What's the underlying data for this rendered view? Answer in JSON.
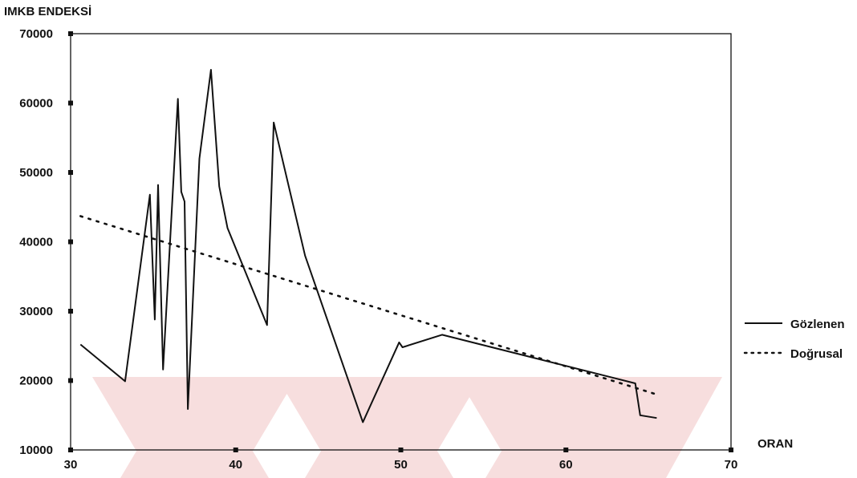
{
  "chart_data": {
    "type": "line",
    "ylabel": "IMKB ENDEKSİ",
    "xlabel": "ORAN",
    "xlim": [
      30,
      70
    ],
    "ylim": [
      10000,
      70000
    ],
    "xticks": [
      30,
      40,
      50,
      60,
      70
    ],
    "yticks": [
      10000,
      20000,
      30000,
      40000,
      50000,
      60000,
      70000
    ],
    "xtick_labels": [
      "30",
      "40",
      "50",
      "60",
      "70"
    ],
    "ytick_labels": [
      "10000",
      "20000",
      "30000",
      "40000",
      "50000",
      "60000",
      "70000"
    ],
    "grid": false,
    "legend_position": "right",
    "colors": {
      "series_line": "#111111",
      "axis": "#111111",
      "watermark": "#f7dede"
    },
    "series": [
      {
        "name": "Gözlenen",
        "style": "solid",
        "x": [
          30.6,
          33.3,
          34.8,
          35.1,
          35.3,
          35.6,
          36.5,
          36.7,
          36.9,
          37.1,
          37.8,
          38.5,
          39.0,
          39.5,
          41.9,
          42.3,
          44.2,
          47.7,
          49.9,
          50.1,
          52.5,
          64.2,
          64.5,
          65.5
        ],
        "y": [
          25200,
          19900,
          46800,
          28800,
          48200,
          21600,
          60600,
          47200,
          45800,
          15900,
          52000,
          64800,
          48000,
          42000,
          28000,
          57200,
          38000,
          14000,
          25500,
          24800,
          26600,
          19600,
          15000,
          14600
        ]
      },
      {
        "name": "Doğrusal",
        "style": "dotted",
        "x": [
          30.6,
          65.5
        ],
        "y": [
          43700,
          18000
        ]
      }
    ]
  }
}
